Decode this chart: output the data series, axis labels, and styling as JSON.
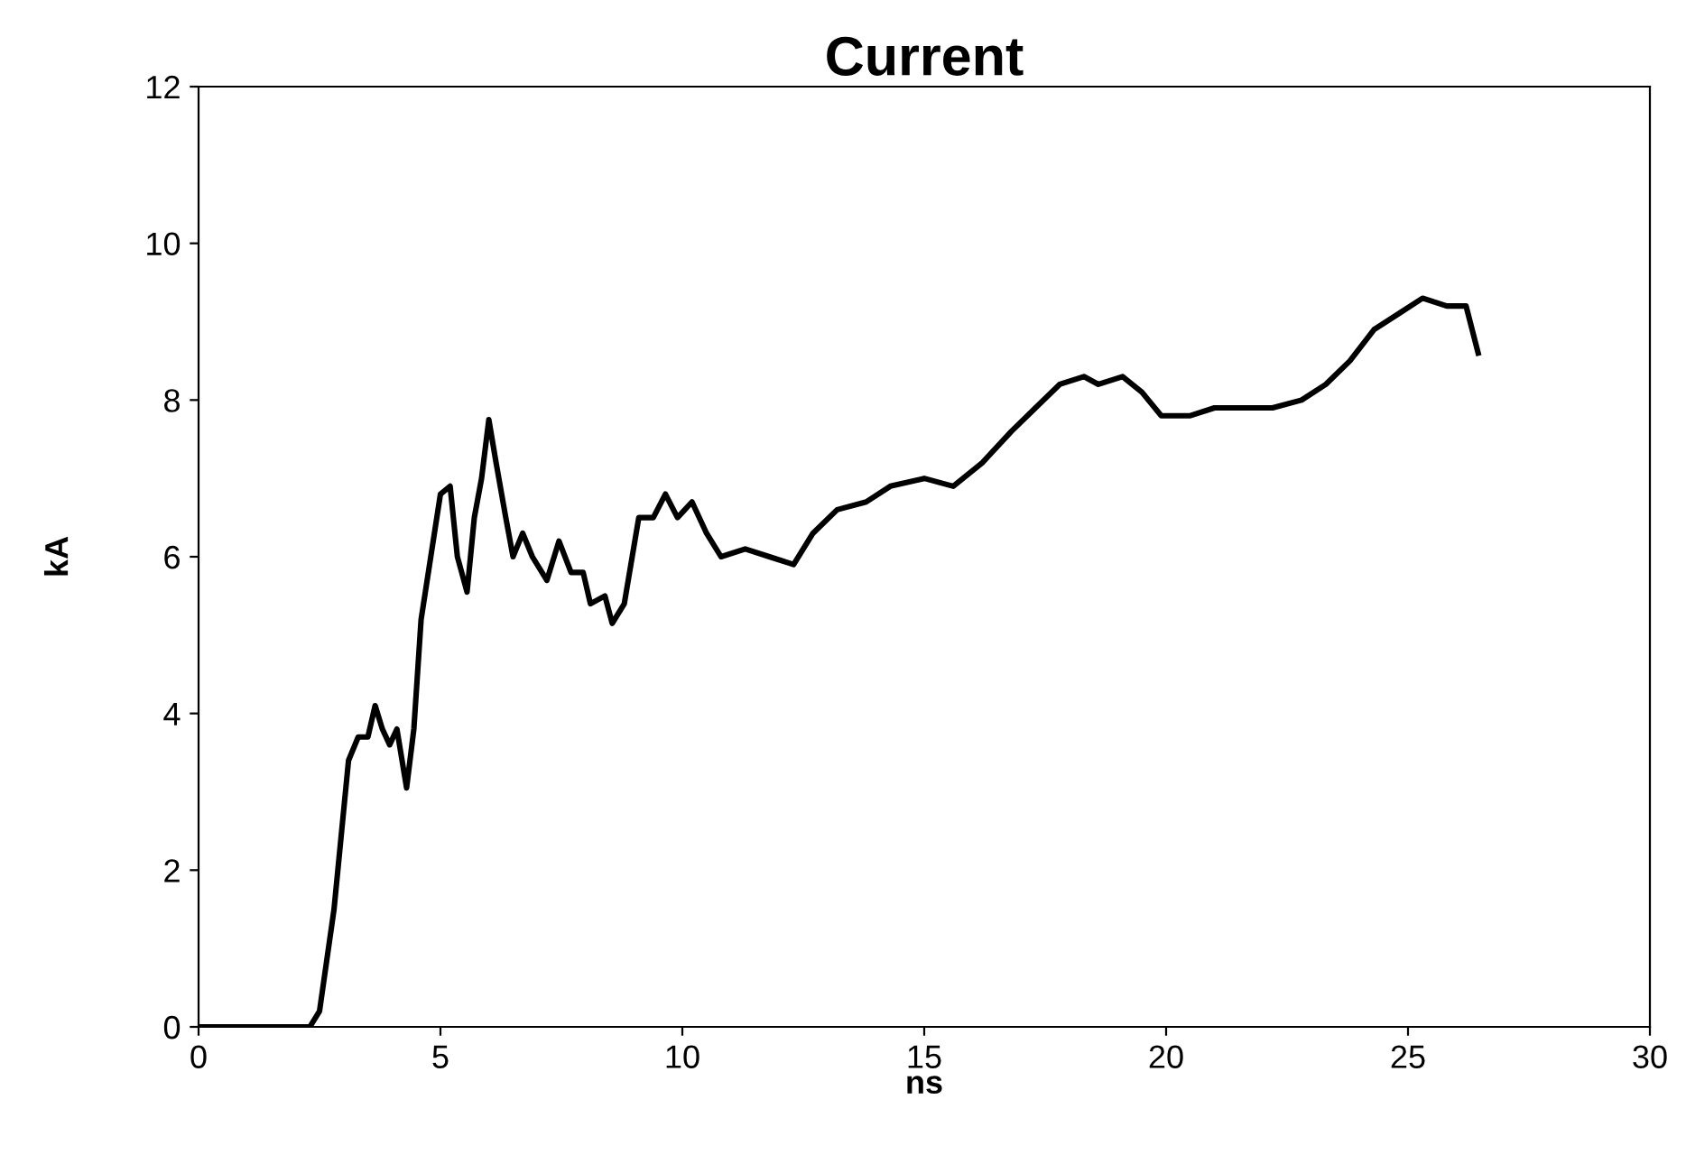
{
  "chart_data": {
    "type": "line",
    "title": "Current",
    "xlabel": "ns",
    "ylabel": "kA",
    "xlim": [
      0,
      30
    ],
    "xticks": [
      0,
      5,
      10,
      15,
      20,
      25,
      30
    ],
    "ylim": [
      0,
      12
    ],
    "yticks": [
      0,
      2,
      4,
      6,
      8,
      10,
      12
    ],
    "grid": false,
    "legend": false,
    "marker": "none",
    "line_style": "solid",
    "series": [
      {
        "color": "#000000",
        "x": [
          0,
          2.3,
          2.5,
          2.8,
          3.1,
          3.3,
          3.5,
          3.65,
          3.8,
          3.95,
          4.1,
          4.3,
          4.45,
          4.6,
          4.8,
          5.0,
          5.2,
          5.35,
          5.55,
          5.7,
          5.85,
          6.0,
          6.15,
          6.35,
          6.5,
          6.7,
          6.9,
          7.2,
          7.45,
          7.7,
          7.95,
          8.1,
          8.4,
          8.55,
          8.8,
          9.1,
          9.4,
          9.65,
          9.9,
          10.2,
          10.5,
          10.8,
          11.3,
          11.8,
          12.3,
          12.7,
          13.2,
          13.8,
          14.3,
          15.0,
          15.6,
          16.2,
          16.8,
          17.3,
          17.8,
          18.3,
          18.6,
          19.1,
          19.5,
          19.9,
          20.5,
          21.0,
          21.6,
          22.2,
          22.8,
          23.3,
          23.8,
          24.3,
          24.8,
          25.3,
          25.8,
          26.2,
          26.45
        ],
        "values": [
          0,
          0,
          0.2,
          1.5,
          3.4,
          3.7,
          3.7,
          4.1,
          3.8,
          3.6,
          3.8,
          3.05,
          3.8,
          5.2,
          6.0,
          6.8,
          6.9,
          6.0,
          5.55,
          6.5,
          7.0,
          7.75,
          7.2,
          6.5,
          6.0,
          6.3,
          6.0,
          5.7,
          6.2,
          5.8,
          5.8,
          5.4,
          5.5,
          5.15,
          5.4,
          6.5,
          6.5,
          6.8,
          6.5,
          6.7,
          6.3,
          6.0,
          6.1,
          6.0,
          5.9,
          6.3,
          6.6,
          6.7,
          6.9,
          7.0,
          6.9,
          7.2,
          7.6,
          7.9,
          8.2,
          8.3,
          8.2,
          8.3,
          8.1,
          7.8,
          7.8,
          7.9,
          7.9,
          7.9,
          8.0,
          8.2,
          8.5,
          8.9,
          9.1,
          9.3,
          9.2,
          9.2,
          8.6
        ]
      }
    ]
  }
}
